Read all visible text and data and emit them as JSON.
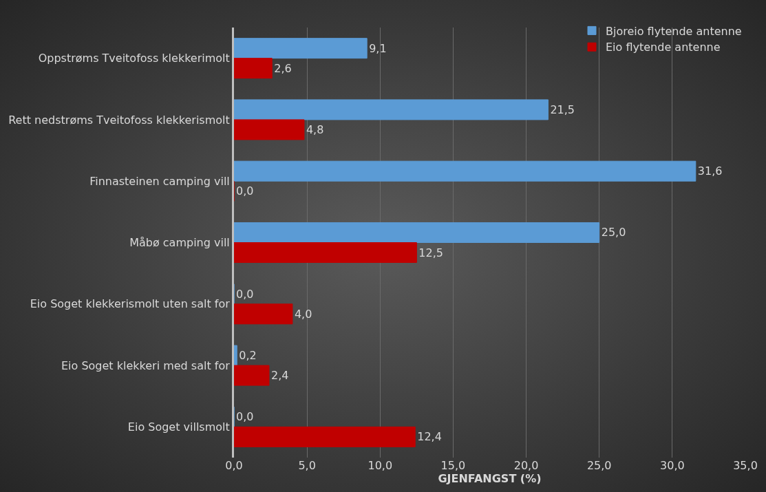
{
  "chart_data": {
    "type": "bar",
    "orientation": "horizontal",
    "xlabel": "GJENFANGST (%)",
    "categories": [
      "Oppstrøms Tveitofoss klekkerimolt",
      "Rett nedstrøms Tveitofoss klekkerismolt",
      "Finnasteinen camping vill",
      "Måbø camping vill",
      "Eio Soget klekkerismolt uten salt for",
      "Eio Soget klekkeri med salt for",
      "Eio Soget villsmolt"
    ],
    "series": [
      {
        "name": "Bjoreio flytende antenne",
        "color": "#5b9bd5",
        "values": [
          9.1,
          21.5,
          31.6,
          25.0,
          0.0,
          0.2,
          0.0
        ],
        "value_labels": [
          "9,1",
          "21,5",
          "31,6",
          "25,0",
          "0,0",
          "0,2",
          "0,0"
        ]
      },
      {
        "name": "Eio flytende antenne",
        "color": "#c00000",
        "values": [
          2.6,
          4.8,
          0.0,
          12.5,
          4.0,
          2.4,
          12.4
        ],
        "value_labels": [
          "2,6",
          "4,8",
          "0,0",
          "12,5",
          "4,0",
          "2,4",
          "12,4"
        ]
      }
    ],
    "xlim": [
      0,
      35
    ],
    "xticks": [
      {
        "value": 0,
        "label": "0,0"
      },
      {
        "value": 5,
        "label": "5,0"
      },
      {
        "value": 10,
        "label": "10,0"
      },
      {
        "value": 15,
        "label": "15,0"
      },
      {
        "value": 20,
        "label": "20,0"
      },
      {
        "value": 25,
        "label": "25,0"
      },
      {
        "value": 30,
        "label": "30,0"
      },
      {
        "value": 35,
        "label": "35,0"
      }
    ],
    "grid": "x",
    "legend": "top right"
  }
}
